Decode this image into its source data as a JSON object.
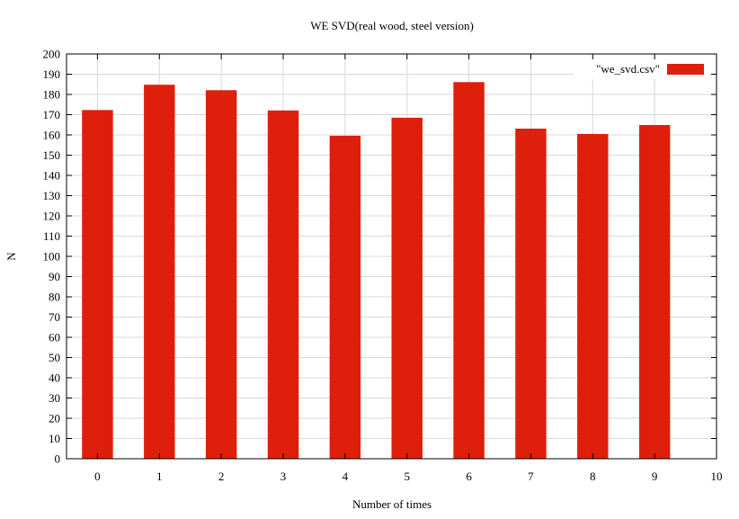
{
  "chart_data": {
    "type": "bar",
    "title": "WE SVD(real wood, steel version)",
    "xlabel": "Number of times",
    "ylabel": "N",
    "categories": [
      0,
      1,
      2,
      3,
      4,
      5,
      6,
      7,
      8,
      9
    ],
    "series": [
      {
        "name": "\"we_svd.csv\"",
        "color": "#de1f0b",
        "values": [
          172.3,
          184.8,
          182.1,
          172.1,
          159.6,
          168.5,
          186.1,
          163.1,
          160.5,
          164.9
        ]
      }
    ],
    "xlim": [
      -0.5,
      10
    ],
    "ylim": [
      0,
      200
    ],
    "xticks": [
      0,
      1,
      2,
      3,
      4,
      5,
      6,
      7,
      8,
      9,
      10
    ],
    "yticks": [
      0,
      10,
      20,
      30,
      40,
      50,
      60,
      70,
      80,
      90,
      100,
      110,
      120,
      130,
      140,
      150,
      160,
      170,
      180,
      190,
      200
    ],
    "grid": true,
    "legend_position": "top-right"
  }
}
